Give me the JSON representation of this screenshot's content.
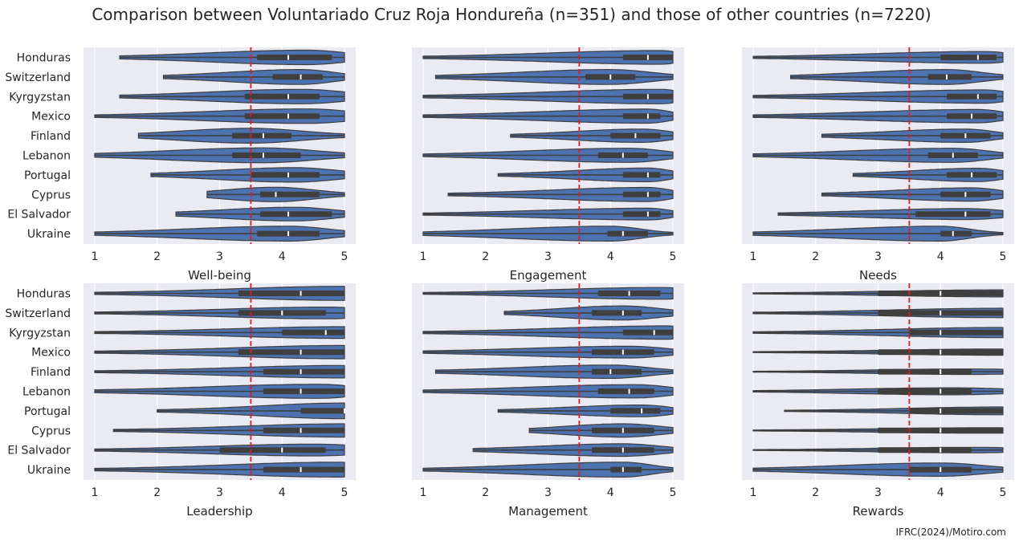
{
  "title": "Comparison between Voluntariado Cruz Roja Hondureña (n=351) and those of other countries (n=7220)",
  "footer": "IFRC(2024)/Motiro.com",
  "colors": {
    "background": "#eaeaf2",
    "grid": "#ffffff",
    "violin_fill": "#4c72b0",
    "violin_stroke": "#3f3f3f",
    "box": "#3f3f3f",
    "median": "#ffffff",
    "reference_line": "#e41a1c"
  },
  "chart_data": {
    "type": "violin",
    "orientation": "horizontal",
    "layout": "2x3 grid",
    "grid": true,
    "x_ticks": [
      1,
      2,
      3,
      4,
      5
    ],
    "xlim": [
      0.82,
      5.18
    ],
    "reference_line": {
      "x": 3.5,
      "style": "dashed"
    },
    "categories": [
      "Honduras",
      "Switzerland",
      "Kyrgyzstan",
      "Mexico",
      "Finland",
      "Lebanon",
      "Portugal",
      "Cyprus",
      "El Salvador",
      "Ukraine"
    ],
    "panels": [
      {
        "xlabel": "Well-being",
        "violins": [
          {
            "min": 1.4,
            "q1": 3.6,
            "median": 4.1,
            "q3": 4.8,
            "max": 5,
            "mode": 4.4,
            "max_half_width": 0.37
          },
          {
            "min": 2.1,
            "q1": 3.85,
            "median": 4.3,
            "q3": 4.65,
            "max": 5,
            "mode": 4.3,
            "max_half_width": 0.38
          },
          {
            "min": 1.4,
            "q1": 3.4,
            "median": 4.1,
            "q3": 4.6,
            "max": 5,
            "mode": 4.3,
            "max_half_width": 0.37
          },
          {
            "min": 1.0,
            "q1": 3.4,
            "median": 4.1,
            "q3": 4.6,
            "max": 5,
            "mode": 4.4,
            "max_half_width": 0.37
          },
          {
            "min": 1.7,
            "q1": 3.2,
            "median": 3.7,
            "q3": 4.15,
            "max": 5,
            "mode": 3.5,
            "max_half_width": 0.38
          },
          {
            "min": 1.0,
            "q1": 3.2,
            "median": 3.7,
            "q3": 4.3,
            "max": 5,
            "mode": 3.7,
            "max_half_width": 0.38
          },
          {
            "min": 1.9,
            "q1": 3.5,
            "median": 4.1,
            "q3": 4.6,
            "max": 5,
            "mode": 4.2,
            "max_half_width": 0.37
          },
          {
            "min": 2.8,
            "q1": 3.65,
            "median": 3.9,
            "q3": 4.6,
            "max": 5,
            "mode": 3.9,
            "max_half_width": 0.37
          },
          {
            "min": 2.3,
            "q1": 3.65,
            "median": 4.1,
            "q3": 4.8,
            "max": 5,
            "mode": 4.2,
            "max_half_width": 0.35
          },
          {
            "min": 1.0,
            "q1": 3.6,
            "median": 4.1,
            "q3": 4.6,
            "max": 5,
            "mode": 4.1,
            "max_half_width": 0.38
          }
        ]
      },
      {
        "xlabel": "Engagement",
        "violins": [
          {
            "min": 1.0,
            "q1": 4.2,
            "median": 4.6,
            "q3": 5.0,
            "max": 5,
            "mode": 4.8,
            "max_half_width": 0.35
          },
          {
            "min": 1.2,
            "q1": 3.6,
            "median": 4.0,
            "q3": 4.4,
            "max": 5,
            "mode": 4.0,
            "max_half_width": 0.38
          },
          {
            "min": 1.0,
            "q1": 4.2,
            "median": 4.6,
            "q3": 5.0,
            "max": 5,
            "mode": 4.8,
            "max_half_width": 0.37
          },
          {
            "min": 1.0,
            "q1": 4.2,
            "median": 4.6,
            "q3": 4.8,
            "max": 5,
            "mode": 4.6,
            "max_half_width": 0.36
          },
          {
            "min": 2.4,
            "q1": 4.0,
            "median": 4.4,
            "q3": 4.8,
            "max": 5,
            "mode": 4.5,
            "max_half_width": 0.34
          },
          {
            "min": 1.0,
            "q1": 3.8,
            "median": 4.2,
            "q3": 4.6,
            "max": 5,
            "mode": 4.3,
            "max_half_width": 0.36
          },
          {
            "min": 2.2,
            "q1": 4.2,
            "median": 4.6,
            "q3": 4.8,
            "max": 5,
            "mode": 4.6,
            "max_half_width": 0.35
          },
          {
            "min": 1.4,
            "q1": 4.2,
            "median": 4.6,
            "q3": 4.8,
            "max": 5,
            "mode": 4.6,
            "max_half_width": 0.36
          },
          {
            "min": 1.0,
            "q1": 4.2,
            "median": 4.6,
            "q3": 4.8,
            "max": 5,
            "mode": 4.6,
            "max_half_width": 0.3
          },
          {
            "min": 1.0,
            "q1": 3.95,
            "median": 4.2,
            "q3": 4.6,
            "max": 5,
            "mode": 4.0,
            "max_half_width": 0.38
          }
        ]
      },
      {
        "xlabel": "Needs",
        "violins": [
          {
            "min": 1.0,
            "q1": 4.0,
            "median": 4.6,
            "q3": 4.9,
            "max": 5,
            "mode": 4.7,
            "max_half_width": 0.3
          },
          {
            "min": 1.6,
            "q1": 3.8,
            "median": 4.1,
            "q3": 4.5,
            "max": 5,
            "mode": 4.1,
            "max_half_width": 0.38
          },
          {
            "min": 1.0,
            "q1": 4.1,
            "median": 4.6,
            "q3": 4.9,
            "max": 5,
            "mode": 4.7,
            "max_half_width": 0.34
          },
          {
            "min": 1.0,
            "q1": 4.1,
            "median": 4.5,
            "q3": 4.9,
            "max": 5,
            "mode": 4.6,
            "max_half_width": 0.34
          },
          {
            "min": 2.1,
            "q1": 4.0,
            "median": 4.4,
            "q3": 4.8,
            "max": 5,
            "mode": 4.4,
            "max_half_width": 0.34
          },
          {
            "min": 1.0,
            "q1": 3.8,
            "median": 4.2,
            "q3": 4.6,
            "max": 5,
            "mode": 4.2,
            "max_half_width": 0.36
          },
          {
            "min": 2.6,
            "q1": 4.1,
            "median": 4.5,
            "q3": 4.9,
            "max": 5,
            "mode": 4.6,
            "max_half_width": 0.34
          },
          {
            "min": 2.1,
            "q1": 4.0,
            "median": 4.4,
            "q3": 4.8,
            "max": 5,
            "mode": 4.5,
            "max_half_width": 0.34
          },
          {
            "min": 1.4,
            "q1": 3.6,
            "median": 4.4,
            "q3": 4.8,
            "max": 5,
            "mode": 4.4,
            "max_half_width": 0.28
          },
          {
            "min": 1.0,
            "q1": 4.0,
            "median": 4.2,
            "q3": 4.5,
            "max": 5,
            "mode": 4.0,
            "max_half_width": 0.38
          }
        ]
      },
      {
        "xlabel": "Leadership",
        "violins": [
          {
            "min": 1.0,
            "q1": 3.3,
            "median": 4.3,
            "q3": 5.0,
            "max": 5,
            "mode": 5.0,
            "max_half_width": 0.36
          },
          {
            "min": 1.0,
            "q1": 3.3,
            "median": 4.0,
            "q3": 4.7,
            "max": 5,
            "mode": 4.7,
            "max_half_width": 0.3
          },
          {
            "min": 1.0,
            "q1": 4.0,
            "median": 4.7,
            "q3": 5.0,
            "max": 5,
            "mode": 5.0,
            "max_half_width": 0.3
          },
          {
            "min": 1.0,
            "q1": 3.3,
            "median": 4.3,
            "q3": 5.0,
            "max": 5,
            "mode": 5.0,
            "max_half_width": 0.34
          },
          {
            "min": 1.0,
            "q1": 3.7,
            "median": 4.3,
            "q3": 5.0,
            "max": 5,
            "mode": 5.0,
            "max_half_width": 0.32
          },
          {
            "min": 1.0,
            "q1": 3.7,
            "median": 4.3,
            "q3": 5.0,
            "max": 5,
            "mode": 4.6,
            "max_half_width": 0.36
          },
          {
            "min": 2.0,
            "q1": 4.3,
            "median": 5.0,
            "q3": 5.0,
            "max": 5,
            "mode": 5.0,
            "max_half_width": 0.4
          },
          {
            "min": 1.3,
            "q1": 3.7,
            "median": 4.3,
            "q3": 5.0,
            "max": 5,
            "mode": 5.0,
            "max_half_width": 0.34
          },
          {
            "min": 1.0,
            "q1": 3.0,
            "median": 4.0,
            "q3": 4.7,
            "max": 5,
            "mode": 4.5,
            "max_half_width": 0.3
          },
          {
            "min": 1.0,
            "q1": 3.7,
            "median": 4.3,
            "q3": 5.0,
            "max": 5,
            "mode": 4.9,
            "max_half_width": 0.38
          }
        ]
      },
      {
        "xlabel": "Management",
        "violins": [
          {
            "min": 1.0,
            "q1": 3.8,
            "median": 4.3,
            "q3": 4.8,
            "max": 5,
            "mode": 4.8,
            "max_half_width": 0.3
          },
          {
            "min": 2.3,
            "q1": 3.7,
            "median": 4.2,
            "q3": 4.5,
            "max": 5,
            "mode": 4.2,
            "max_half_width": 0.36
          },
          {
            "min": 1.0,
            "q1": 4.2,
            "median": 4.7,
            "q3": 5.0,
            "max": 5,
            "mode": 4.9,
            "max_half_width": 0.34
          },
          {
            "min": 1.0,
            "q1": 3.7,
            "median": 4.2,
            "q3": 4.7,
            "max": 5,
            "mode": 4.3,
            "max_half_width": 0.3
          },
          {
            "min": 1.2,
            "q1": 3.7,
            "median": 4.0,
            "q3": 4.5,
            "max": 5,
            "mode": 4.0,
            "max_half_width": 0.34
          },
          {
            "min": 1.0,
            "q1": 3.8,
            "median": 4.3,
            "q3": 4.7,
            "max": 5,
            "mode": 4.4,
            "max_half_width": 0.34
          },
          {
            "min": 2.2,
            "q1": 4.0,
            "median": 4.5,
            "q3": 4.8,
            "max": 5,
            "mode": 4.5,
            "max_half_width": 0.3
          },
          {
            "min": 2.7,
            "q1": 3.7,
            "median": 4.2,
            "q3": 4.7,
            "max": 5,
            "mode": 4.2,
            "max_half_width": 0.34
          },
          {
            "min": 1.8,
            "q1": 3.7,
            "median": 4.2,
            "q3": 4.7,
            "max": 5,
            "mode": 4.2,
            "max_half_width": 0.32
          },
          {
            "min": 1.0,
            "q1": 4.0,
            "median": 4.2,
            "q3": 4.5,
            "max": 5,
            "mode": 4.2,
            "max_half_width": 0.38
          }
        ]
      },
      {
        "xlabel": "Rewards",
        "violins": [
          {
            "min": 1.0,
            "q1": 3.0,
            "median": 4.0,
            "q3": 5.0,
            "max": 5,
            "mode": 5.0,
            "max_half_width": 0.18
          },
          {
            "min": 1.0,
            "q1": 3.0,
            "median": 4.0,
            "q3": 5.0,
            "max": 5,
            "mode": 5.0,
            "max_half_width": 0.24
          },
          {
            "min": 1.0,
            "q1": 3.5,
            "median": 4.0,
            "q3": 5.0,
            "max": 5,
            "mode": 5.0,
            "max_half_width": 0.26
          },
          {
            "min": 1.0,
            "q1": 3.0,
            "median": 4.0,
            "q3": 5.0,
            "max": 5,
            "mode": 5.0,
            "max_half_width": 0.16
          },
          {
            "min": 1.0,
            "q1": 3.0,
            "median": 4.0,
            "q3": 4.5,
            "max": 5,
            "mode": 4.5,
            "max_half_width": 0.14
          },
          {
            "min": 1.0,
            "q1": 3.0,
            "median": 4.0,
            "q3": 4.5,
            "max": 5,
            "mode": 4.2,
            "max_half_width": 0.18
          },
          {
            "min": 1.5,
            "q1": 3.5,
            "median": 4.0,
            "q3": 5.0,
            "max": 5,
            "mode": 5.0,
            "max_half_width": 0.2
          },
          {
            "min": 1.0,
            "q1": 3.0,
            "median": 4.0,
            "q3": 5.0,
            "max": 5,
            "mode": 4.8,
            "max_half_width": 0.14
          },
          {
            "min": 1.0,
            "q1": 3.0,
            "median": 4.0,
            "q3": 4.5,
            "max": 5,
            "mode": 4.5,
            "max_half_width": 0.14
          },
          {
            "min": 1.0,
            "q1": 3.5,
            "median": 4.0,
            "q3": 4.5,
            "max": 5,
            "mode": 4.0,
            "max_half_width": 0.34
          }
        ]
      }
    ]
  }
}
